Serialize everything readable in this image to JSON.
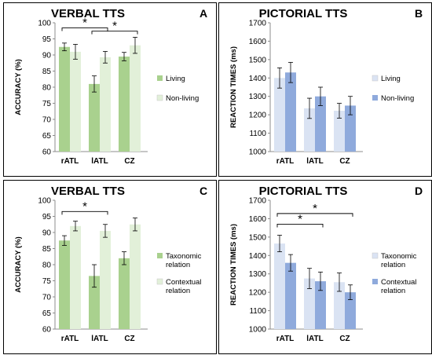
{
  "chart_data": [
    {
      "type": "bar",
      "panel_letter": "A",
      "title": "VERBAL TTS",
      "ylabel": "ACCURACY (%)",
      "xlabel": "",
      "categories": [
        "rATL",
        "lATL",
        "CZ"
      ],
      "ylim": [
        60,
        100
      ],
      "yticks": [
        60,
        65,
        70,
        75,
        80,
        85,
        90,
        95,
        100
      ],
      "grid": false,
      "legend_position": "right",
      "series": [
        {
          "name": "Living",
          "values": [
            92.5,
            81.0,
            89.5
          ],
          "errors": [
            1.2,
            2.5,
            1.3
          ],
          "color": "#a9d18e"
        },
        {
          "name": "Non-living",
          "values": [
            91.0,
            89.3,
            93.0
          ],
          "errors": [
            2.3,
            1.8,
            2.5
          ],
          "color": "#e2f0d9"
        }
      ],
      "significance": [
        {
          "label": "*",
          "from": 0,
          "to": 1,
          "level": 98.4
        },
        {
          "label": "*",
          "from": 1,
          "to": 2,
          "level": 97.4
        }
      ]
    },
    {
      "type": "bar",
      "panel_letter": "B",
      "title": "PICTORIAL TTS",
      "ylabel": "REACTION TIMES (ms)",
      "xlabel": "",
      "categories": [
        "rATL",
        "lATL",
        "CZ"
      ],
      "ylim": [
        1000,
        1700
      ],
      "yticks": [
        1000,
        1100,
        1200,
        1300,
        1400,
        1500,
        1600,
        1700
      ],
      "grid": false,
      "legend_position": "right",
      "series": [
        {
          "name": "Living",
          "values": [
            1400,
            1235,
            1222
          ],
          "errors": [
            55,
            55,
            40
          ],
          "color": "#dae3f3"
        },
        {
          "name": "Non-living",
          "values": [
            1430,
            1300,
            1250
          ],
          "errors": [
            55,
            50,
            50
          ],
          "color": "#8faadc"
        }
      ],
      "significance": []
    },
    {
      "type": "bar",
      "panel_letter": "C",
      "title": "VERBAL TTS",
      "ylabel": "ACCURACY (%)",
      "xlabel": "",
      "categories": [
        "rATL",
        "lATL",
        "CZ"
      ],
      "ylim": [
        60,
        100
      ],
      "yticks": [
        60,
        65,
        70,
        75,
        80,
        85,
        90,
        95,
        100
      ],
      "grid": false,
      "legend_position": "right",
      "series": [
        {
          "name": "Taxonomic relation",
          "values": [
            87.5,
            76.5,
            82.0
          ],
          "errors": [
            1.5,
            3.5,
            2.0
          ],
          "color": "#a9d18e"
        },
        {
          "name": "Contextual relation",
          "values": [
            92.0,
            90.5,
            92.5
          ],
          "errors": [
            1.5,
            2.0,
            2.0
          ],
          "color": "#e2f0d9"
        }
      ],
      "significance": [
        {
          "label": "*",
          "from": 0,
          "to": 1,
          "level": 96.5
        }
      ]
    },
    {
      "type": "bar",
      "panel_letter": "D",
      "title": "PICTORIAL TTS",
      "ylabel": "REACTION TIMES (ms)",
      "xlabel": "",
      "categories": [
        "rATL",
        "lATL",
        "CZ"
      ],
      "ylim": [
        1000,
        1700
      ],
      "yticks": [
        1000,
        1100,
        1200,
        1300,
        1400,
        1500,
        1600,
        1700
      ],
      "grid": false,
      "legend_position": "right",
      "series": [
        {
          "name": "Taxonomic relation",
          "values": [
            1465,
            1275,
            1255
          ],
          "errors": [
            45,
            55,
            50
          ],
          "color": "#dae3f3"
        },
        {
          "name": "Contextual relation",
          "values": [
            1360,
            1260,
            1200
          ],
          "errors": [
            45,
            50,
            40
          ],
          "color": "#8faadc"
        }
      ],
      "significance": [
        {
          "label": "*",
          "from": 0,
          "to": 1,
          "level": 1570
        },
        {
          "label": "*",
          "from": 0,
          "to": 2,
          "level": 1628
        }
      ]
    }
  ]
}
